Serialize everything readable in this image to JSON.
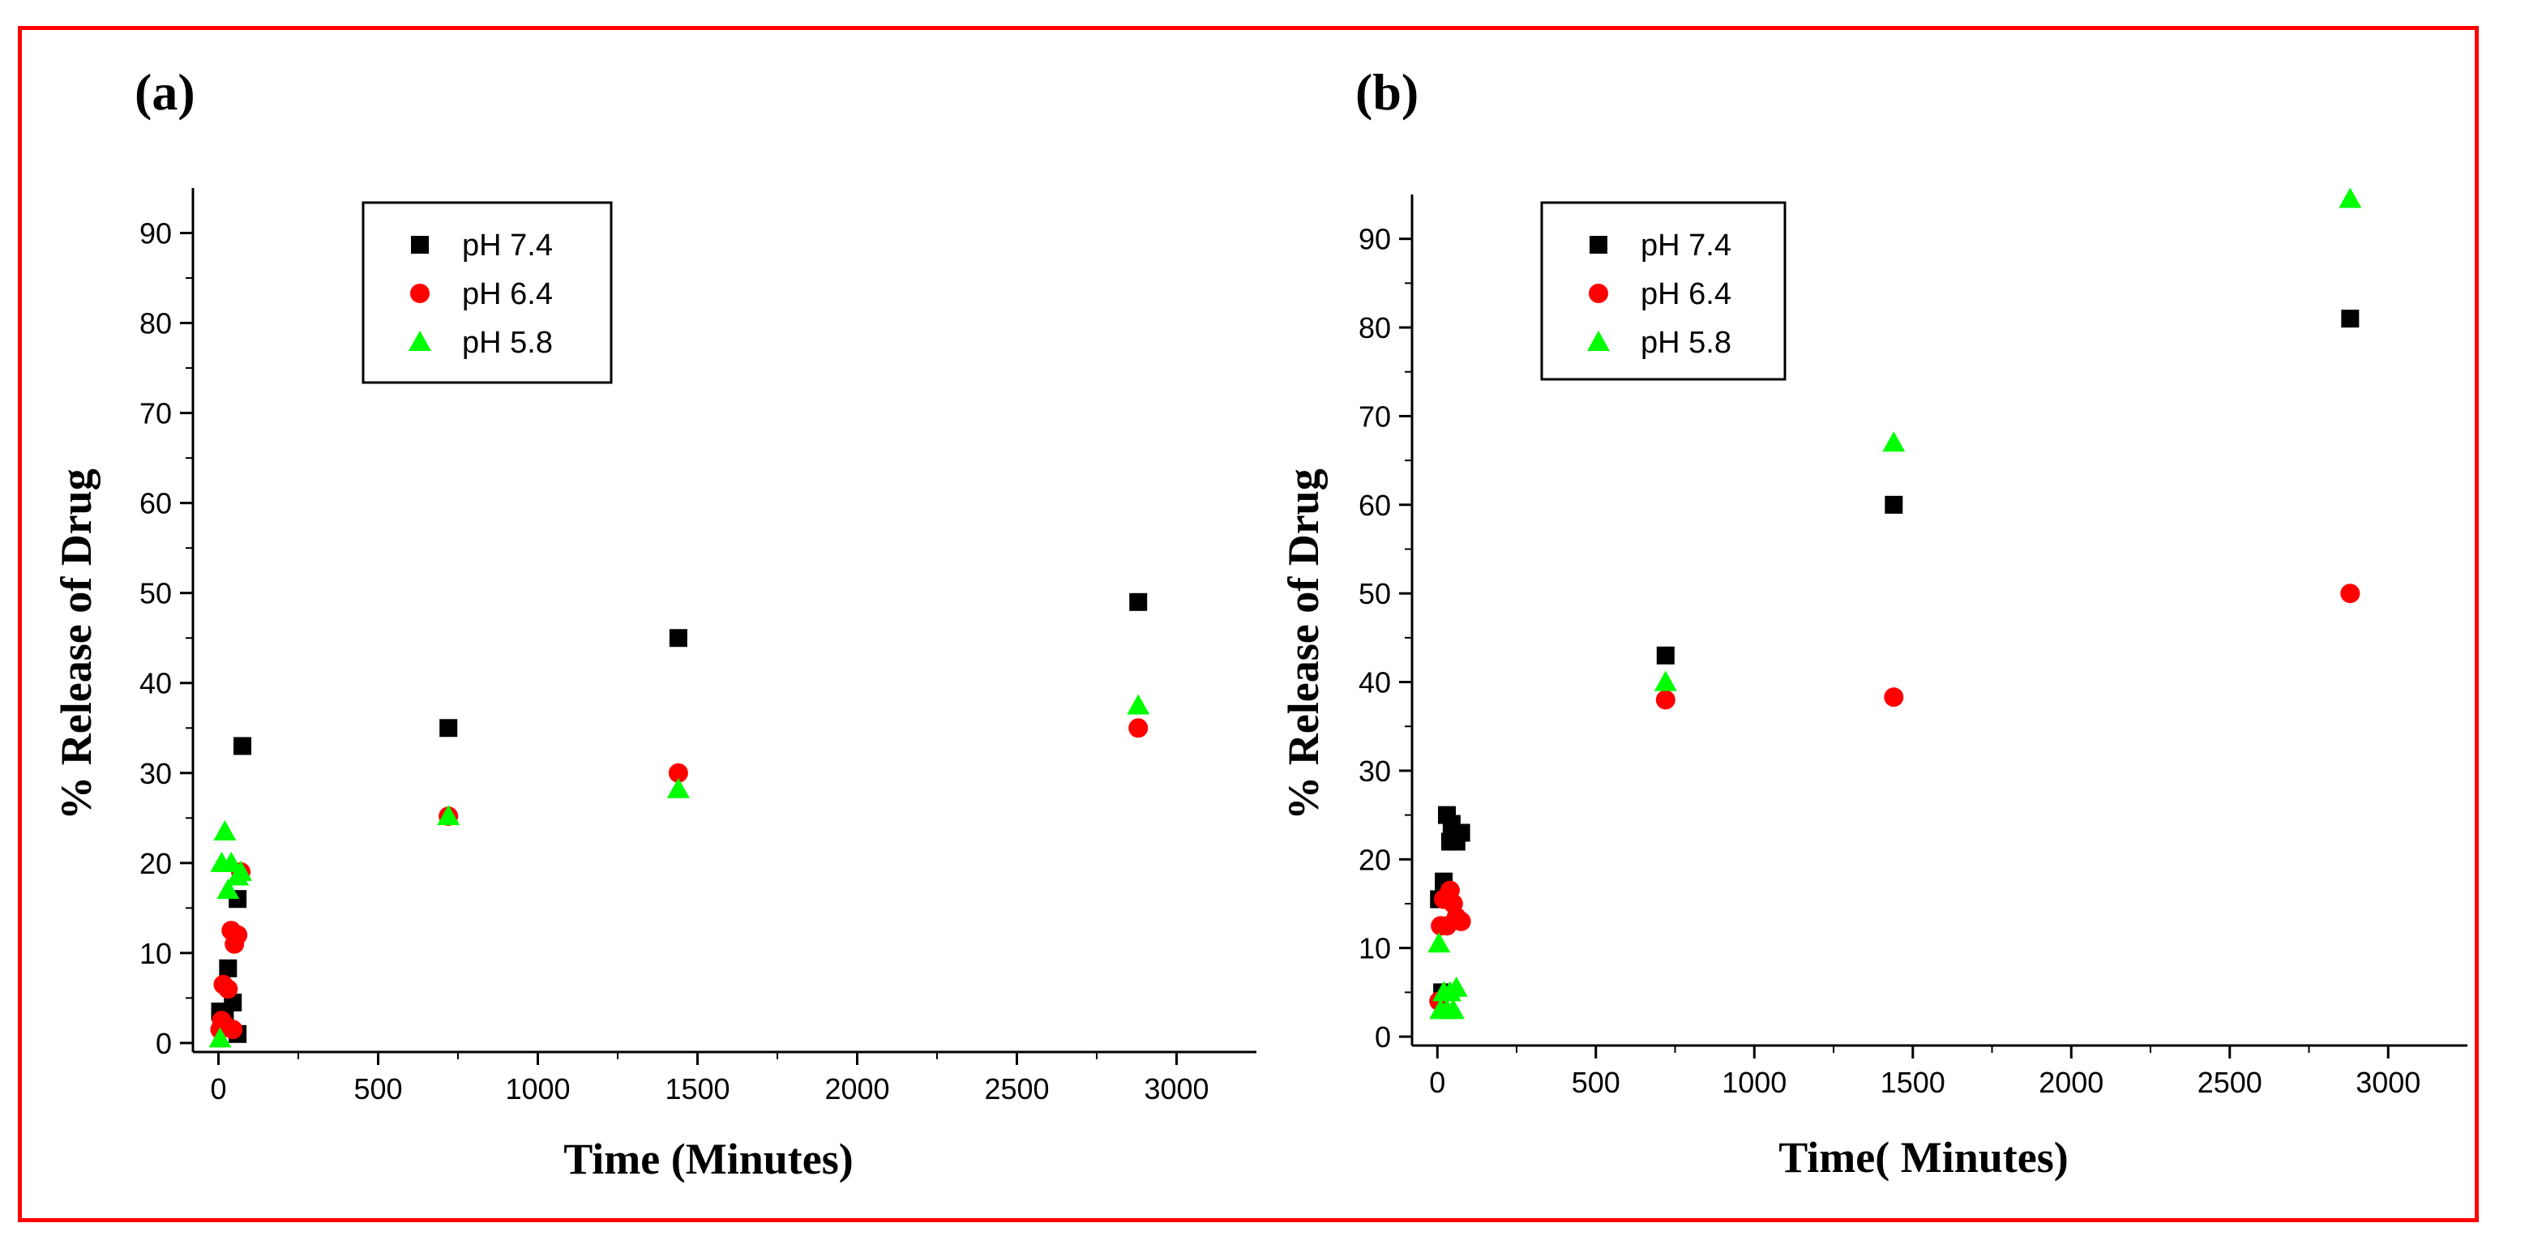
{
  "colors": {
    "frame": "#ff0000",
    "ph74": "#000000",
    "ph64": "#ff0000",
    "ph58": "#00ff00"
  },
  "chart_data": [
    {
      "type": "scatter",
      "panel_label": "(a)",
      "title": "",
      "xlabel": "Time (Minutes)",
      "ylabel": "% Release of Drug",
      "xlim": [
        -80,
        3250
      ],
      "ylim": [
        -1,
        95
      ],
      "xticks": [
        0,
        500,
        1000,
        1500,
        2000,
        2500,
        3000
      ],
      "yticks": [
        0,
        10,
        20,
        30,
        40,
        50,
        60,
        70,
        80,
        90
      ],
      "xtick_labels": [
        "0",
        "500",
        "1000",
        "1500",
        "2000",
        "2500",
        "3000"
      ],
      "ytick_labels": [
        "0",
        "10",
        "20",
        "30",
        "40",
        "50",
        "60",
        "70",
        "80",
        "90"
      ],
      "legend_position": "top-left",
      "series": [
        {
          "name": "pH 7.4",
          "marker": "square",
          "color": "#000000",
          "x": [
            5,
            10,
            15,
            20,
            30,
            45,
            60,
            60,
            75,
            720,
            1440,
            2880
          ],
          "y": [
            3.5,
            3,
            2.5,
            3,
            8.3,
            4.5,
            16,
            1,
            33,
            35,
            45,
            49
          ]
        },
        {
          "name": "pH 6.4",
          "marker": "circle",
          "color": "#ff0000",
          "x": [
            5,
            10,
            15,
            20,
            30,
            40,
            45,
            50,
            60,
            70,
            720,
            1440,
            2880
          ],
          "y": [
            1.5,
            2.5,
            6.5,
            2,
            6,
            12.5,
            1.5,
            11,
            12,
            19,
            25.2,
            30,
            35
          ]
        },
        {
          "name": "pH 5.8",
          "marker": "triangle",
          "color": "#00ff00",
          "x": [
            5,
            10,
            20,
            30,
            40,
            60,
            70,
            720,
            1440,
            2880
          ],
          "y": [
            0.5,
            20,
            23.5,
            17,
            20,
            18.5,
            19,
            25.2,
            28.2,
            37.5
          ]
        }
      ]
    },
    {
      "type": "scatter",
      "panel_label": "(b)",
      "title": "",
      "xlabel": "Time( Minutes)",
      "ylabel": "% Release of Drug",
      "xlim": [
        -80,
        3250
      ],
      "ylim": [
        -1,
        95
      ],
      "xticks": [
        0,
        500,
        1000,
        1500,
        2000,
        2500,
        3000
      ],
      "yticks": [
        0,
        10,
        20,
        30,
        40,
        50,
        60,
        70,
        80,
        90
      ],
      "xtick_labels": [
        "0",
        "500",
        "1000",
        "1500",
        "2000",
        "2500",
        "3000"
      ],
      "ytick_labels": [
        "0",
        "10",
        "20",
        "30",
        "40",
        "50",
        "60",
        "70",
        "80",
        "90"
      ],
      "legend_position": "top-left",
      "series": [
        {
          "name": "pH 7.4",
          "marker": "square",
          "color": "#000000",
          "x": [
            5,
            15,
            20,
            30,
            40,
            45,
            60,
            75,
            720,
            1440,
            2880
          ],
          "y": [
            15.5,
            5,
            17.5,
            25,
            22,
            24,
            22,
            23,
            43,
            60,
            81
          ]
        },
        {
          "name": "pH 6.4",
          "marker": "circle",
          "color": "#ff0000",
          "x": [
            5,
            10,
            20,
            30,
            40,
            50,
            60,
            75,
            720,
            1440,
            2880
          ],
          "y": [
            4,
            12.5,
            15.5,
            12.5,
            16.5,
            15,
            13.5,
            13,
            38,
            38.3,
            50
          ]
        },
        {
          "name": "pH 5.8",
          "marker": "triangle",
          "color": "#00ff00",
          "x": [
            5,
            10,
            20,
            30,
            40,
            50,
            60,
            720,
            1440,
            2880
          ],
          "y": [
            10.5,
            3,
            5,
            3,
            5,
            3,
            5.5,
            40,
            67,
            94.5
          ]
        }
      ]
    }
  ]
}
